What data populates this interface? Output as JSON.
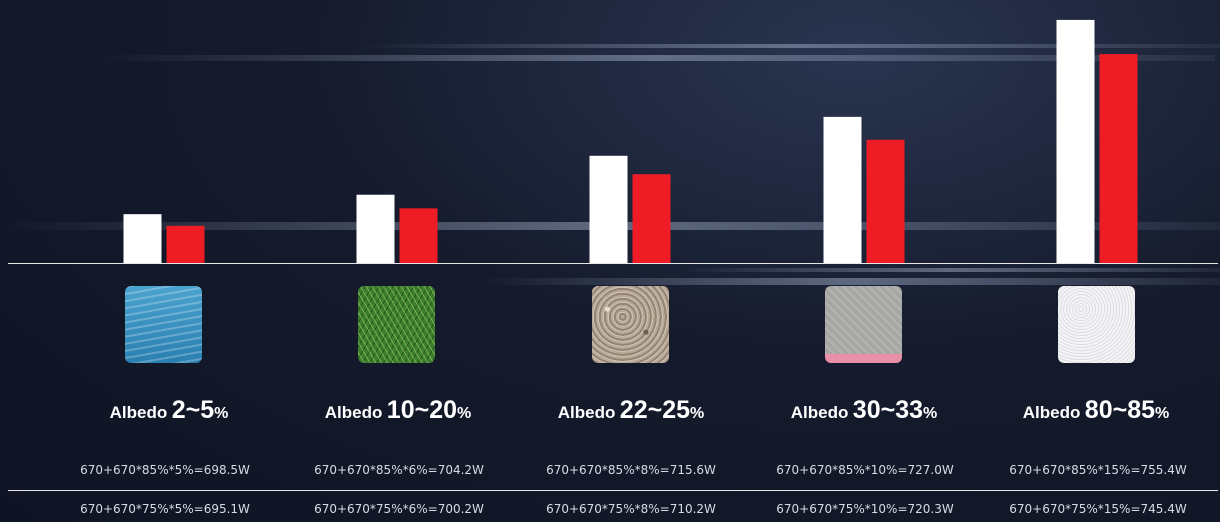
{
  "chart_data": {
    "type": "bar",
    "categories": [
      "Albedo 2~5%",
      "Albedo 10~20%",
      "Albedo 22~25%",
      "Albedo 30~33%",
      "Albedo 80~85%"
    ],
    "series": [
      {
        "color": "#ffffff",
        "values": [
          698.5,
          704.2,
          715.6,
          727.0,
          755.4
        ]
      },
      {
        "color": "#ee1c25",
        "values": [
          695.1,
          700.2,
          710.2,
          720.3,
          745.4
        ]
      }
    ],
    "ylim": [
      684.2,
      758.3
    ],
    "grid": false,
    "legend": "none"
  },
  "columns": [
    {
      "word": "Albedo",
      "range": "2~5",
      "pct": "%",
      "surface_icon": "water-surface-icon",
      "formula_top": "670+670*85%*5%=698.5W",
      "formula_bottom": "670+670*75%*5%=695.1W"
    },
    {
      "word": "Albedo",
      "range": "10~20",
      "pct": "%",
      "surface_icon": "grass-surface-icon",
      "formula_top": "670+670*85%*6%=704.2W",
      "formula_bottom": "670+670*75%*6%=700.2W"
    },
    {
      "word": "Albedo",
      "range": "22~25",
      "pct": "%",
      "surface_icon": "gravel-surface-icon",
      "formula_top": "670+670*85%*8%=715.6W",
      "formula_bottom": "670+670*75%*8%=710.2W"
    },
    {
      "word": "Albedo",
      "range": "30~33",
      "pct": "%",
      "surface_icon": "concrete-surface-icon",
      "formula_top": "670+670*85%*10%=727.0W",
      "formula_bottom": "670+670*75%*10%=720.3W"
    },
    {
      "word": "Albedo",
      "range": "80~85",
      "pct": "%",
      "surface_icon": "snow-surface-icon",
      "formula_top": "670+670*85%*15%=755.4W",
      "formula_bottom": "670+670*75%*15%=745.4W"
    }
  ]
}
